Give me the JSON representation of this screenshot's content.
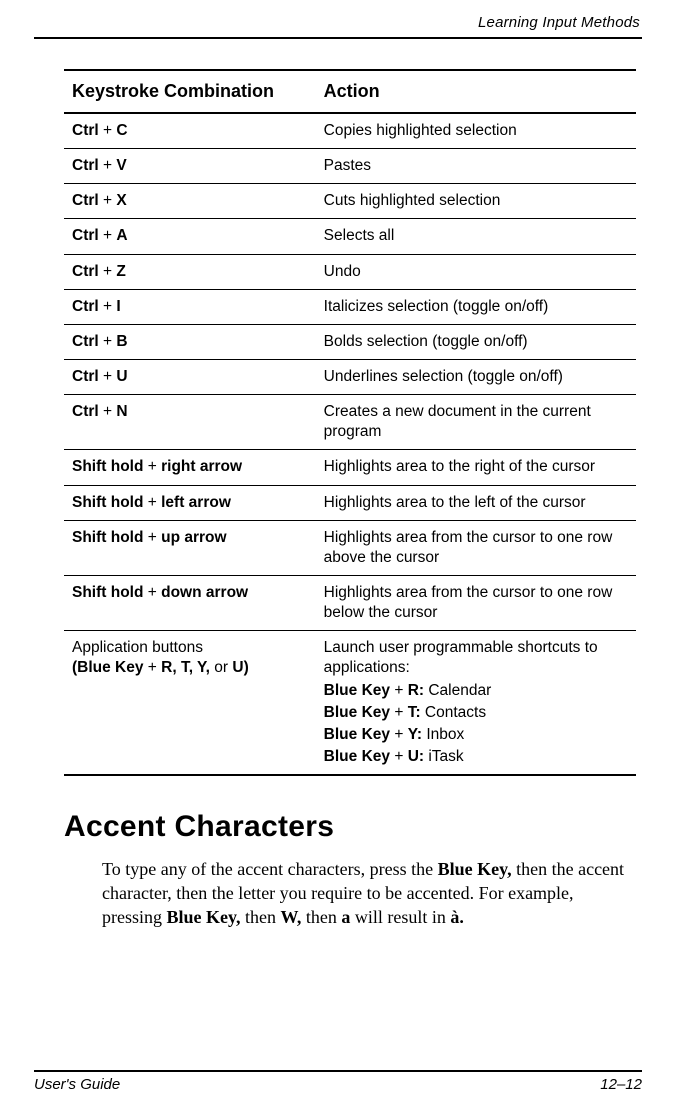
{
  "runningHead": "Learning Input Methods",
  "table": {
    "headers": {
      "col1": "Keystroke Combination",
      "col2": "Action"
    },
    "rows": [
      {
        "k1": "Ctrl",
        "plus": " + ",
        "k2": "C",
        "action": "Copies highlighted selection"
      },
      {
        "k1": "Ctrl",
        "plus": " + ",
        "k2": "V",
        "action": "Pastes"
      },
      {
        "k1": "Ctrl",
        "plus": " + ",
        "k2": "X",
        "action": "Cuts highlighted selection"
      },
      {
        "k1": "Ctrl",
        "plus": " + ",
        "k2": "A",
        "action": "Selects all"
      },
      {
        "k1": "Ctrl",
        "plus": " + ",
        "k2": "Z",
        "action": "Undo"
      },
      {
        "k1": "Ctrl",
        "plus": " + ",
        "k2": "I",
        "action": "Italicizes selection (toggle on/off)"
      },
      {
        "k1": "Ctrl",
        "plus": " + ",
        "k2": "B",
        "action": "Bolds selection (toggle on/off)"
      },
      {
        "k1": "Ctrl",
        "plus": " + ",
        "k2": "U",
        "action": "Underlines selection (toggle on/off)"
      },
      {
        "k1": "Ctrl",
        "plus": " + ",
        "k2": "N",
        "action": "Creates a new document in the current program"
      },
      {
        "k1": "Shift hold",
        "plus": " + ",
        "k2": "right arrow",
        "action": "Highlights area to the right of the cursor"
      },
      {
        "k1": "Shift hold",
        "plus": " + ",
        "k2": "left arrow",
        "action": "Highlights area to the left of the cursor"
      },
      {
        "k1": "Shift hold",
        "plus": " + ",
        "k2": "up arrow",
        "action": "Highlights area from the cursor to one row above the cursor"
      },
      {
        "k1": "Shift hold",
        "plus": " + ",
        "k2": "down arrow",
        "action": "Highlights area from the cursor to one row below the cursor"
      }
    ],
    "appRow": {
      "keystrokeLine1": "Application buttons",
      "keystrokeLine2a": "(Blue Key",
      "keystrokeLine2plus": " + ",
      "keystrokeLine2b": "R, T, Y,",
      "keystrokeLine2or": " or ",
      "keystrokeLine2c": "U)",
      "actionIntro": "Launch user programmable shortcuts to applications:",
      "shortcuts": [
        {
          "key": "Blue Key",
          "plus": " + ",
          "letter": "R:",
          "app": " Calendar"
        },
        {
          "key": "Blue Key",
          "plus": " + ",
          "letter": "T:",
          "app": " Contacts"
        },
        {
          "key": "Blue Key",
          "plus": " + ",
          "letter": "Y:",
          "app": " Inbox"
        },
        {
          "key": "Blue Key",
          "plus": " + ",
          "letter": "U:",
          "app": " iTask"
        }
      ]
    }
  },
  "sectionHeading": "Accent Characters",
  "paragraph": {
    "t1": "To type any of the accent characters, press the ",
    "b1": "Blue Key,",
    "t2": " then the accent character, then the letter you require to be accented. For example, pressing ",
    "b2": "Blue Key,",
    "t3": " then ",
    "b3": "W,",
    "t4": " then ",
    "b4": "a",
    "t5": " will result in ",
    "b5": "à."
  },
  "footer": {
    "left": "User's Guide",
    "right": "12–12"
  }
}
